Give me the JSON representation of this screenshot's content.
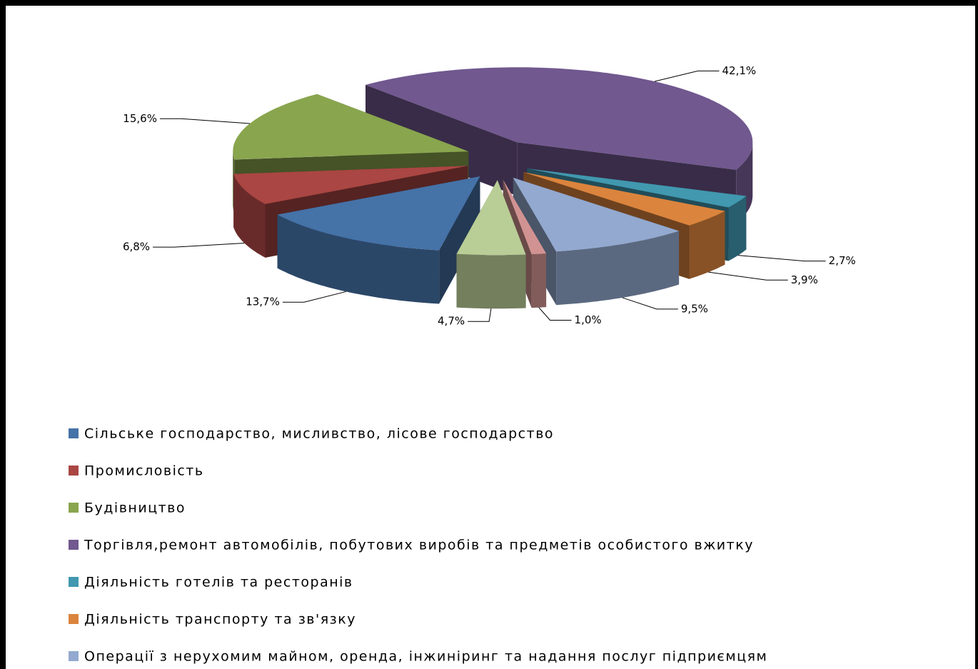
{
  "chart_data": {
    "type": "pie3d",
    "categories": [
      "Сільське господарство, мисливство, лісове господарство",
      "Промисловість",
      "Будівництво",
      "Торгівля,ремонт автомобілів, побутових виробів та предметів особистого вжитку",
      "Діяльність готелів та ресторанів",
      "Діяльність транспорту та зв'язку",
      "Операції з нерухомим майном, оренда, інжиніринг та надання послуг підприємцям",
      null,
      null
    ],
    "values": [
      13.7,
      6.8,
      15.6,
      42.1,
      2.7,
      3.9,
      9.5,
      1.0,
      4.7
    ],
    "value_labels": [
      "13,7%",
      "6,8%",
      "15,6%",
      "42,1%",
      "2,7%",
      "3,9%",
      "9,5%",
      "1,0%",
      "4,7%"
    ],
    "colors": [
      "#4572a7",
      "#aa4643",
      "#89a54e",
      "#71588f",
      "#4198af",
      "#db843d",
      "#93a9cf",
      "#d19392",
      "#b9cd96"
    ],
    "legend": "bottom"
  }
}
